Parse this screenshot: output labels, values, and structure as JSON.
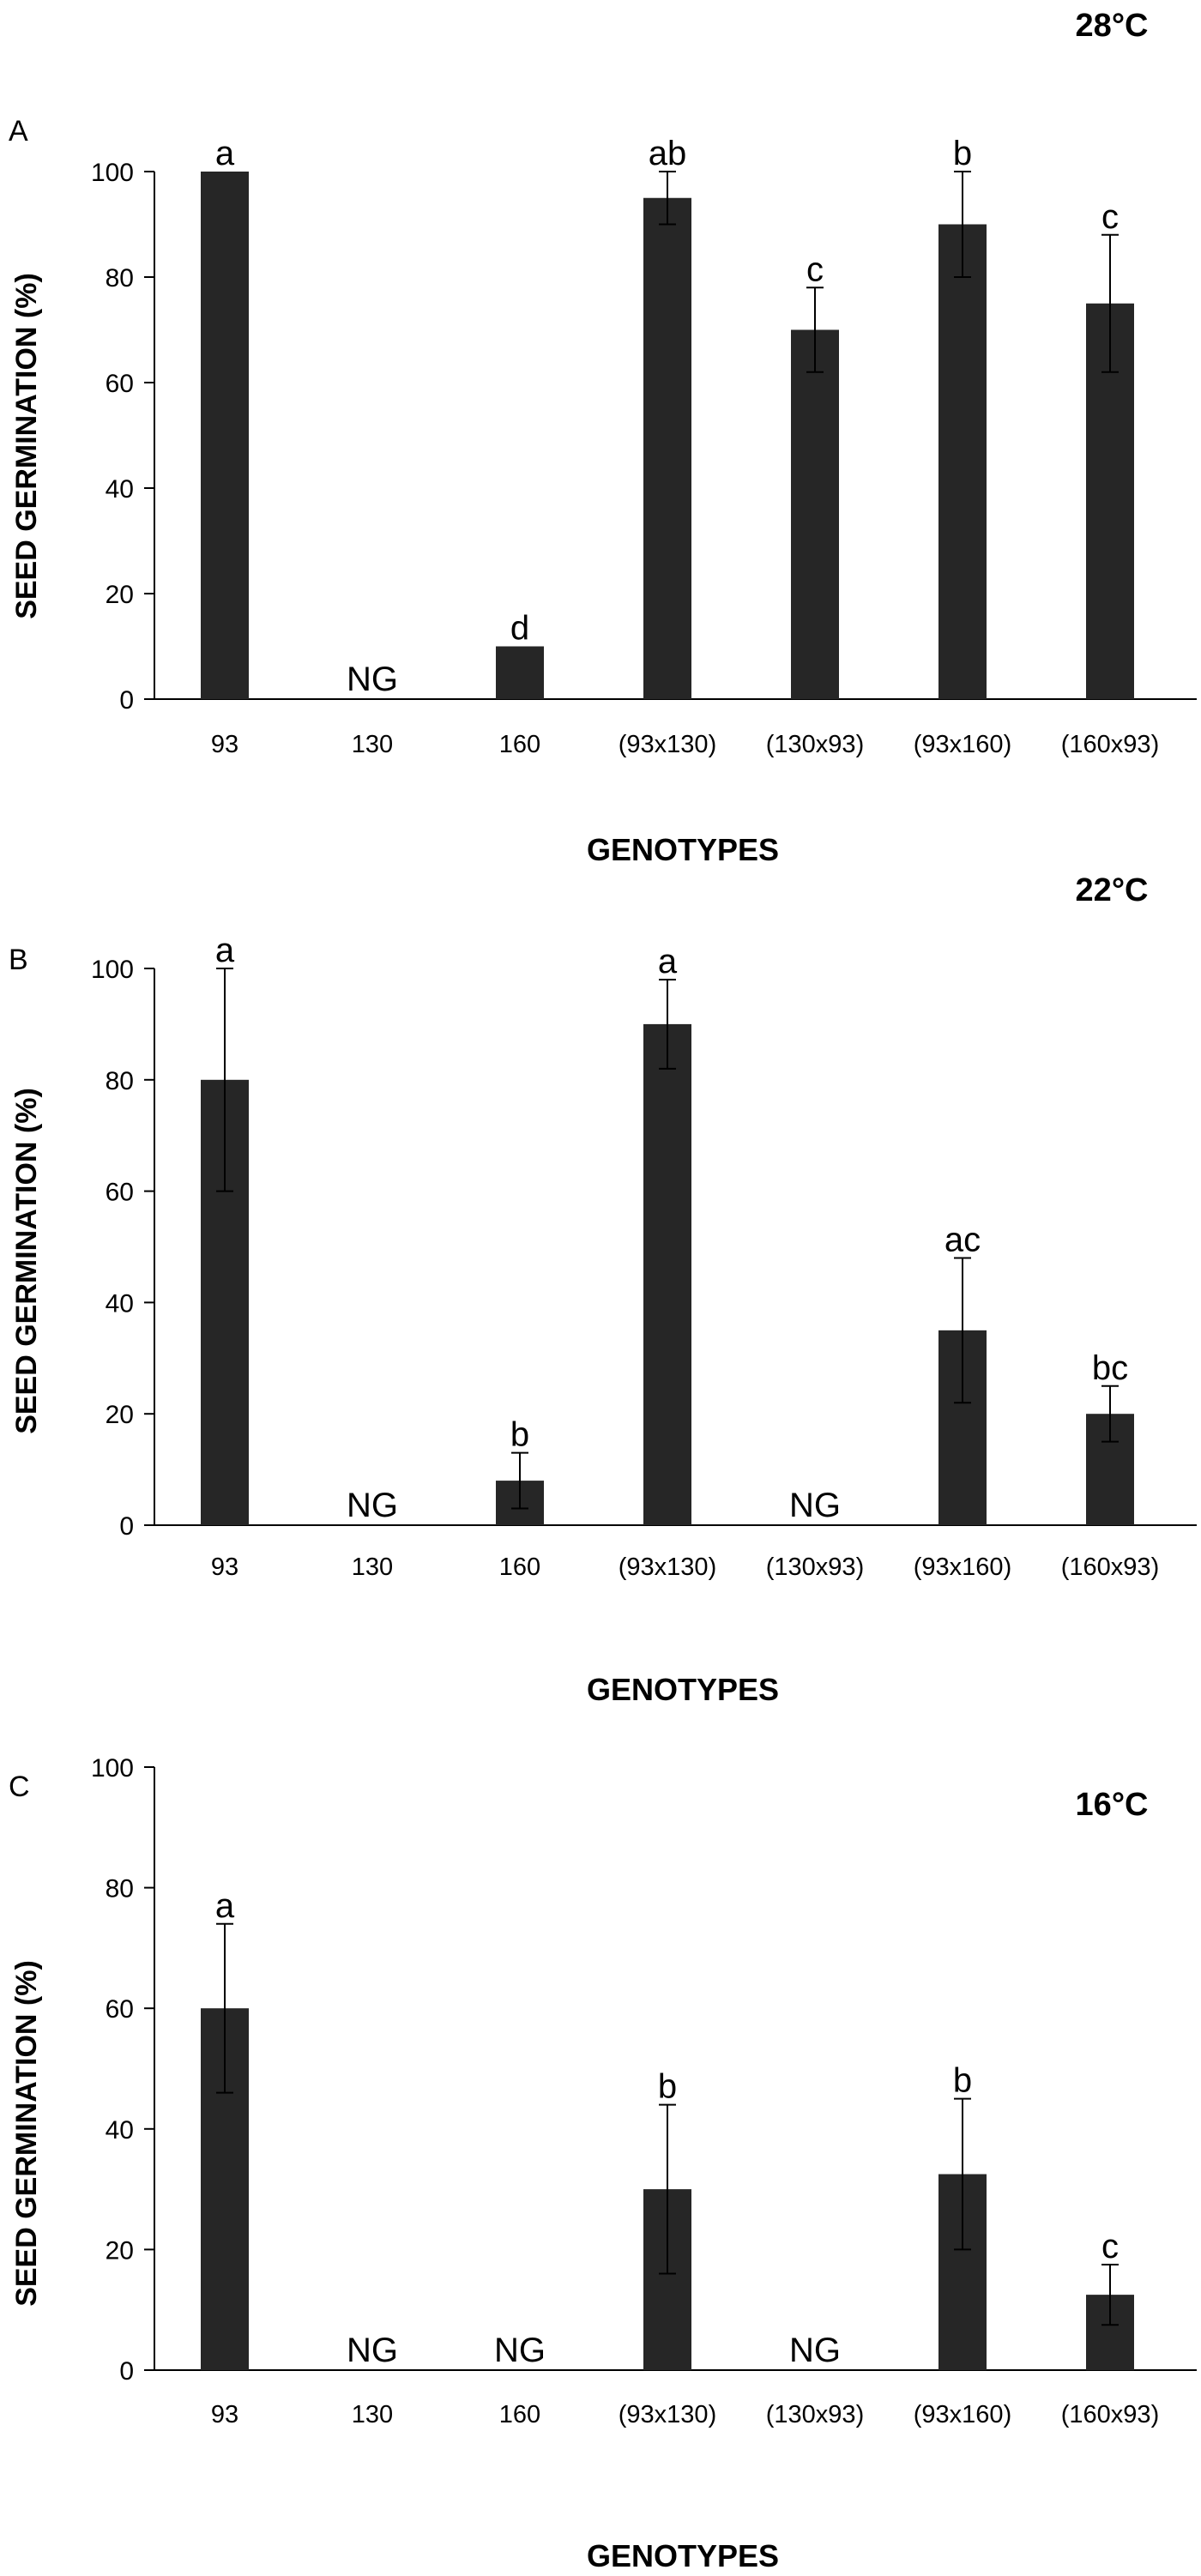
{
  "figure": {
    "xlabel": "GENOTYPES",
    "ylabel": "SEED GERMINATION (%)",
    "bar_color": "#262626",
    "axis_color": "#000000"
  },
  "chart_data": [
    {
      "type": "bar",
      "panel_label": "A",
      "title": "28°C",
      "xlabel": "GENOTYPES",
      "ylabel": "SEED GERMINATION (%)",
      "categories": [
        "93",
        "130",
        "160",
        "(93x130)",
        "(130x93)",
        "(93x160)",
        "(160x93)"
      ],
      "values": [
        100,
        null,
        10,
        95,
        70,
        90,
        75
      ],
      "errors": [
        0,
        null,
        0,
        5,
        8,
        10,
        13
      ],
      "letters": [
        "a",
        "NG",
        "d",
        "ab",
        "c",
        "b",
        "c"
      ],
      "ylim": [
        0,
        100
      ],
      "yticks": [
        0,
        20,
        40,
        60,
        80,
        100
      ]
    },
    {
      "type": "bar",
      "panel_label": "B",
      "title": "22°C",
      "xlabel": "GENOTYPES",
      "ylabel": "SEED GERMINATION (%)",
      "categories": [
        "93",
        "130",
        "160",
        "(93x130)",
        "(130x93)",
        "(93x160)",
        "(160x93)"
      ],
      "values": [
        80,
        null,
        8,
        90,
        null,
        35,
        20
      ],
      "errors": [
        20,
        null,
        5,
        8,
        null,
        13,
        5
      ],
      "letters": [
        "a",
        "NG",
        "b",
        "a",
        "NG",
        "ac",
        "bc"
      ],
      "ylim": [
        0,
        100
      ],
      "yticks": [
        0,
        20,
        40,
        60,
        80,
        100
      ]
    },
    {
      "type": "bar",
      "panel_label": "C",
      "title": "16°C",
      "xlabel": "GENOTYPES",
      "ylabel": "SEED GERMINATION (%)",
      "categories": [
        "93",
        "130",
        "160",
        "(93x130)",
        "(130x93)",
        "(93x160)",
        "(160x93)"
      ],
      "values": [
        60,
        null,
        null,
        30,
        null,
        32.5,
        12.5
      ],
      "errors": [
        14,
        null,
        null,
        14,
        null,
        12.5,
        5
      ],
      "letters": [
        "a",
        "NG",
        "NG",
        "b",
        "NG",
        "b",
        "c"
      ],
      "ylim": [
        0,
        100
      ],
      "yticks": [
        0,
        20,
        40,
        60,
        80,
        100
      ]
    }
  ]
}
